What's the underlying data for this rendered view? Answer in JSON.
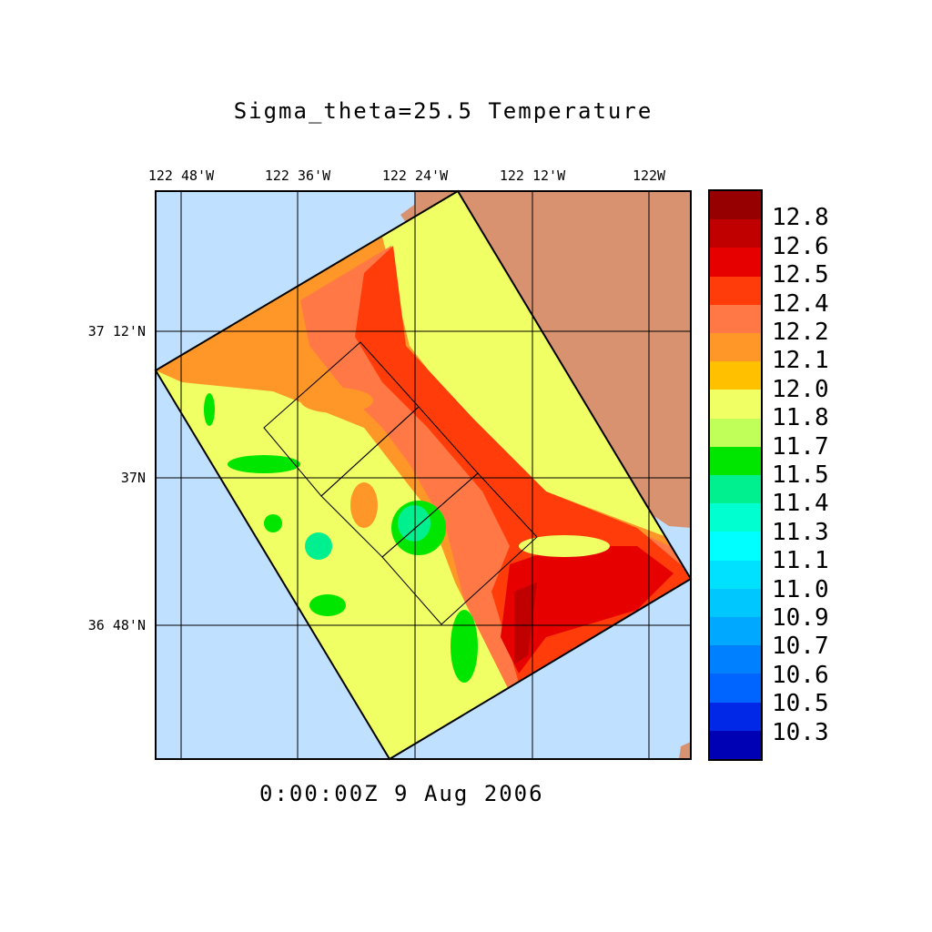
{
  "title": "Sigma_theta=25.5 Temperature",
  "time_label": "0:00:00Z   9 Aug 2006",
  "lon_labels": [
    "122 48'W",
    "122 36'W",
    "122 24'W",
    "122 12'W",
    "122W"
  ],
  "lat_labels": [
    "37 12'N",
    "37N",
    "36 48'N"
  ],
  "colors": {
    "ocean": "#bfe0ff",
    "land": "#d99270"
  },
  "colorbar": {
    "labels": [
      "12.8",
      "12.6",
      "12.5",
      "12.4",
      "12.2",
      "12.1",
      "12.0",
      "11.8",
      "11.7",
      "11.5",
      "11.4",
      "11.3",
      "11.1",
      "11.0",
      "10.9",
      "10.7",
      "10.6",
      "10.5",
      "10.3"
    ],
    "colors": [
      "#960000",
      "#c00000",
      "#e60000",
      "#ff3c0a",
      "#ff7846",
      "#ff9628",
      "#ffc000",
      "#f0ff64",
      "#c0ff5a",
      "#00e600",
      "#00f090",
      "#00ffd0",
      "#00ffff",
      "#00e0ff",
      "#00c8ff",
      "#00a8ff",
      "#0080ff",
      "#0064ff",
      "#0028e6",
      "#0000b4"
    ]
  }
}
